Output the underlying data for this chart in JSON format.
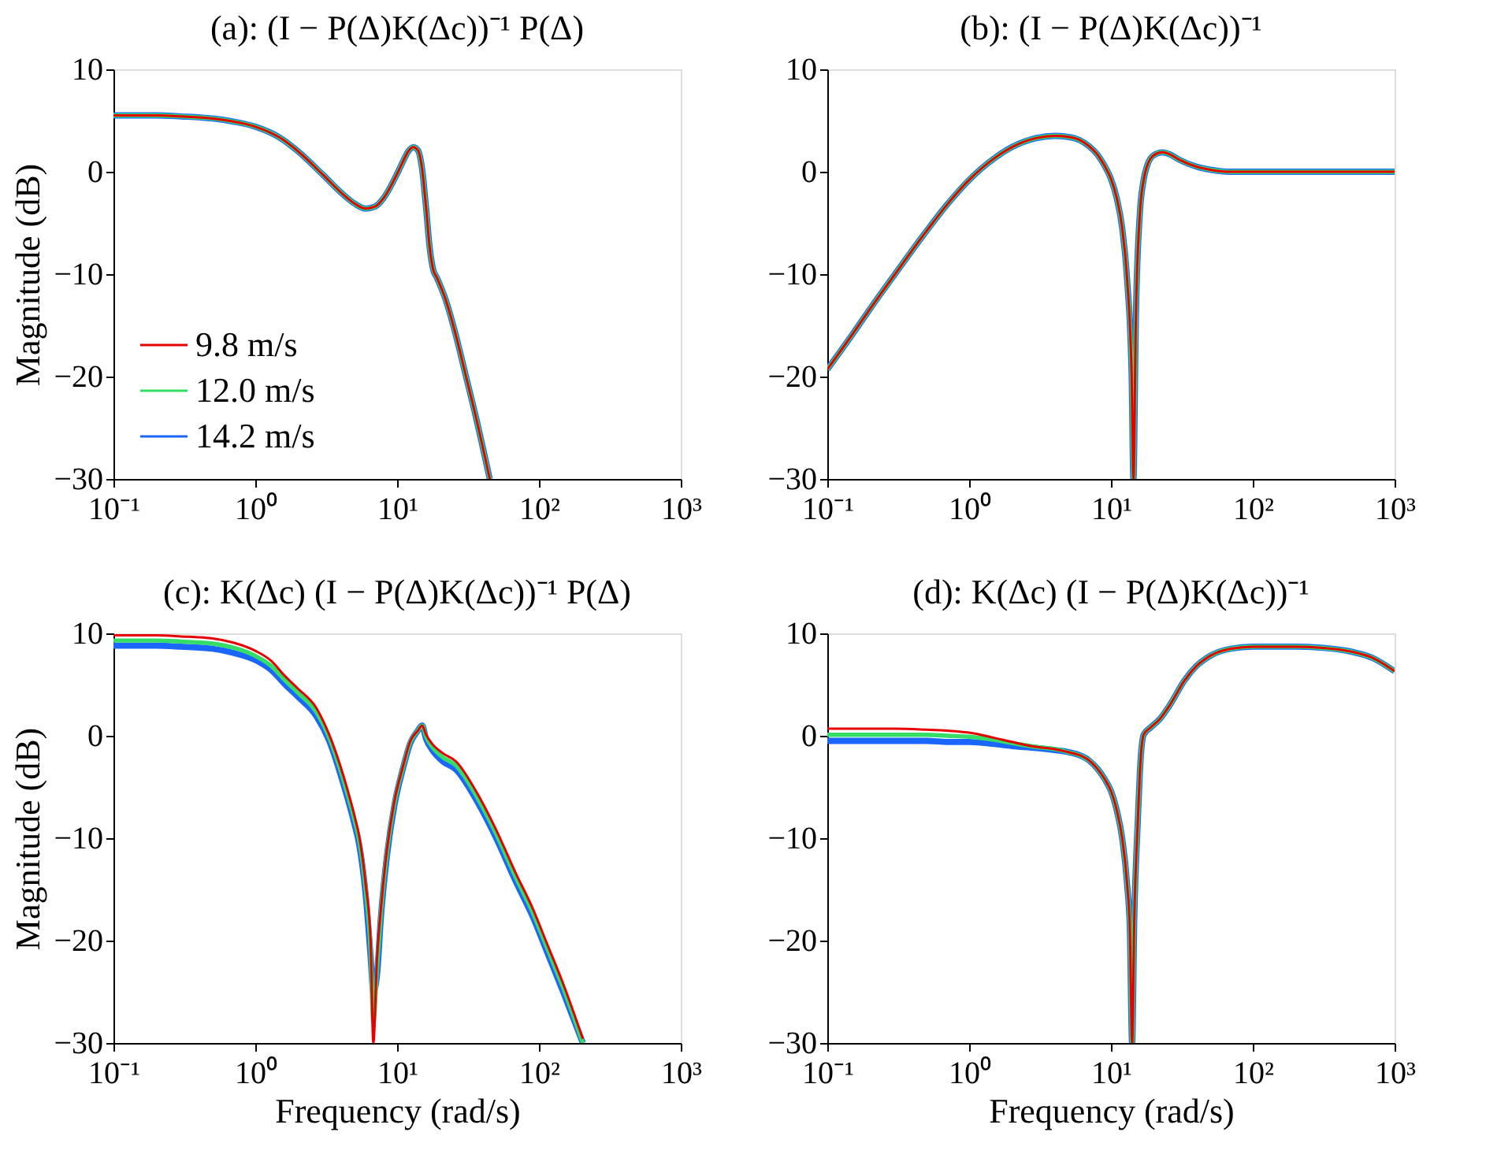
{
  "chart_data": [
    {
      "type": "line",
      "title": "(a): (I − P(Δ)K(Δc))⁻¹ P(Δ)",
      "ylabel": "Magnitude (dB)",
      "legend": "bottom left",
      "x": [
        0.1,
        0.2,
        0.3,
        0.5,
        0.7,
        1,
        1.5,
        2,
        3,
        4,
        5,
        6,
        7,
        8,
        10,
        11,
        12,
        13,
        14,
        15,
        16,
        17,
        18,
        19,
        22,
        26,
        30,
        36,
        45
      ],
      "series": [
        {
          "name": "9.8 m/s",
          "color": "#e60000",
          "values": [
            5.5,
            5.5,
            5.4,
            5.2,
            4.9,
            4.4,
            3.3,
            2.0,
            -0.3,
            -2.0,
            -3.1,
            -3.6,
            -3.4,
            -2.6,
            -0.2,
            1.0,
            2.0,
            2.4,
            2.1,
            0.3,
            -3.5,
            -7.5,
            -9.6,
            -10.3,
            -12.5,
            -16,
            -19.5,
            -24,
            -30
          ]
        },
        {
          "name": "12.0 m/s",
          "color": "#33dd66",
          "values": [
            5.5,
            5.5,
            5.4,
            5.2,
            4.9,
            4.4,
            3.3,
            2.0,
            -0.3,
            -2.0,
            -3.1,
            -3.6,
            -3.4,
            -2.6,
            -0.2,
            1.0,
            2.0,
            2.4,
            2.1,
            0.3,
            -3.5,
            -7.5,
            -9.6,
            -10.3,
            -12.5,
            -16,
            -19.5,
            -24,
            -30
          ]
        },
        {
          "name": "14.2 m/s",
          "color": "#1a66ff",
          "values": [
            5.5,
            5.5,
            5.4,
            5.2,
            4.9,
            4.4,
            3.3,
            2.0,
            -0.3,
            -2.0,
            -3.1,
            -3.6,
            -3.4,
            -2.6,
            -0.2,
            1.0,
            2.0,
            2.4,
            2.1,
            0.3,
            -3.5,
            -7.5,
            -9.6,
            -10.3,
            -12.5,
            -16,
            -19.5,
            -24,
            -30
          ]
        }
      ],
      "xlim": [
        0.1,
        1000
      ],
      "ylim": [
        -30,
        10
      ],
      "log": "x",
      "xticks": [
        {
          "value": 0.1,
          "label": "10⁻¹"
        },
        {
          "value": 1,
          "label": "10⁰"
        },
        {
          "value": 10,
          "label": "10¹"
        },
        {
          "value": 100,
          "label": "10²"
        },
        {
          "value": 1000,
          "label": "10³"
        }
      ],
      "yticks": [
        -30,
        -20,
        -10,
        0,
        10
      ]
    },
    {
      "type": "line",
      "title": "(b): (I − P(Δ)K(Δc))⁻¹",
      "x": [
        0.1,
        0.15,
        0.2,
        0.3,
        0.5,
        0.7,
        1,
        1.5,
        2,
        3,
        4,
        5,
        6,
        7,
        8,
        9,
        10,
        11,
        12,
        13,
        14,
        14.4,
        15,
        16,
        17,
        18,
        20,
        23,
        26,
        30,
        40,
        50,
        70,
        100,
        200,
        500,
        1000
      ],
      "series": [
        {
          "color": "#e60000",
          "values": [
            -19.3,
            -15.9,
            -13.4,
            -10.0,
            -5.8,
            -3.2,
            -0.8,
            1.3,
            2.4,
            3.3,
            3.5,
            3.4,
            3.1,
            2.5,
            1.7,
            0.6,
            -0.7,
            -2.6,
            -5.5,
            -10.5,
            -20,
            -30,
            -14,
            -4,
            -0.8,
            0.6,
            1.6,
            1.9,
            1.7,
            1.2,
            0.5,
            0.2,
            0,
            0,
            0,
            0,
            0
          ]
        },
        {
          "color": "#33dd66",
          "values": [
            -19.3,
            -15.9,
            -13.4,
            -10.0,
            -5.8,
            -3.2,
            -0.8,
            1.3,
            2.4,
            3.3,
            3.5,
            3.4,
            3.1,
            2.5,
            1.7,
            0.6,
            -0.7,
            -2.6,
            -5.5,
            -10.5,
            -20,
            -30,
            -14,
            -4,
            -0.8,
            0.6,
            1.6,
            1.9,
            1.7,
            1.2,
            0.5,
            0.2,
            0,
            0,
            0,
            0,
            0
          ]
        },
        {
          "color": "#1a66ff",
          "values": [
            -19.3,
            -15.9,
            -13.4,
            -10.0,
            -5.8,
            -3.2,
            -0.8,
            1.3,
            2.4,
            3.3,
            3.5,
            3.4,
            3.1,
            2.5,
            1.7,
            0.6,
            -0.7,
            -2.6,
            -5.5,
            -10.5,
            -20,
            -30,
            -14,
            -4,
            -0.8,
            0.6,
            1.6,
            1.9,
            1.7,
            1.2,
            0.5,
            0.2,
            0,
            0,
            0,
            0,
            0
          ]
        }
      ],
      "xlim": [
        0.1,
        1000
      ],
      "ylim": [
        -30,
        10
      ],
      "log": "x",
      "xticks": [
        {
          "value": 0.1,
          "label": "10⁻¹"
        },
        {
          "value": 1,
          "label": "10⁰"
        },
        {
          "value": 10,
          "label": "10¹"
        },
        {
          "value": 100,
          "label": "10²"
        },
        {
          "value": 1000,
          "label": "10³"
        }
      ],
      "yticks": [
        -30,
        -20,
        -10,
        0,
        10
      ]
    },
    {
      "type": "line",
      "title": "(c): K(Δc) (I − P(Δ)K(Δc))⁻¹ P(Δ)",
      "ylabel": "Magnitude (dB)",
      "xlabel": "Frequency (rad/s)",
      "x": [
        0.1,
        0.2,
        0.3,
        0.5,
        0.7,
        1,
        1.3,
        1.6,
        2,
        2.7,
        3.3,
        4.2,
        5,
        5.4,
        6,
        6.5,
        6.8,
        7.2,
        7.7,
        8.5,
        9.6,
        11,
        12.4,
        14,
        15,
        16,
        17.7,
        21,
        26,
        37,
        50,
        68,
        90,
        114,
        150,
        204
      ],
      "series": [
        {
          "color": "#e60000",
          "values": [
            9.8,
            9.8,
            9.7,
            9.5,
            9.1,
            8.3,
            7.3,
            5.9,
            4.6,
            2.7,
            0.2,
            -4,
            -7.8,
            -9.8,
            -14.5,
            -20,
            -30,
            -22,
            -16.8,
            -11,
            -6.3,
            -3.0,
            -0.5,
            0.5,
            1.0,
            0.1,
            -0.8,
            -1.7,
            -2.5,
            -5.7,
            -9.2,
            -13.3,
            -16.8,
            -20.3,
            -24.4,
            -29.6
          ]
        },
        {
          "color": "#33dd66",
          "values": [
            9.3,
            9.3,
            9.2,
            9.0,
            8.6,
            7.8,
            6.8,
            5.5,
            4.2,
            2.3,
            -0.1,
            -4.4,
            -8.2,
            -10.2,
            -15,
            -21,
            -28,
            -23,
            -17.2,
            -11.3,
            -6.5,
            -3.1,
            -0.6,
            0.5,
            1.0,
            -0.1,
            -1.1,
            -2.1,
            -2.9,
            -6.1,
            -9.6,
            -13.7,
            -17.2,
            -20.7,
            -24.8,
            -30
          ]
        },
        {
          "color": "#1a66ff",
          "values": [
            8.8,
            8.8,
            8.7,
            8.5,
            8.1,
            7.4,
            6.4,
            5.1,
            3.8,
            1.9,
            -0.4,
            -4.8,
            -8.6,
            -10.6,
            -15.5,
            -21.5,
            -25,
            -23.5,
            -17.6,
            -11.6,
            -6.7,
            -3.2,
            -0.7,
            0.5,
            1.0,
            -0.3,
            -1.4,
            -2.5,
            -3.3,
            -6.5,
            -10,
            -14.1,
            -17.6,
            -21.1,
            -25.2,
            -30
          ]
        }
      ],
      "xlim": [
        0.1,
        1000
      ],
      "ylim": [
        -30,
        10
      ],
      "log": "x",
      "xticks": [
        {
          "value": 0.1,
          "label": "10⁻¹"
        },
        {
          "value": 1,
          "label": "10⁰"
        },
        {
          "value": 10,
          "label": "10¹"
        },
        {
          "value": 100,
          "label": "10²"
        },
        {
          "value": 1000,
          "label": "10³"
        }
      ],
      "yticks": [
        -30,
        -20,
        -10,
        0,
        10
      ]
    },
    {
      "type": "line",
      "title": "(d): K(Δc) (I − P(Δ)K(Δc))⁻¹",
      "xlabel": "Frequency (rad/s)",
      "x": [
        0.1,
        0.2,
        0.3,
        0.5,
        0.7,
        1,
        1.5,
        2,
        3,
        4,
        5,
        6,
        7,
        8,
        9,
        10,
        11,
        12,
        13,
        13.6,
        14.1,
        14.6,
        15.5,
        16,
        17,
        19,
        22,
        26,
        33,
        40,
        50,
        70,
        100,
        150,
        200,
        300,
        500,
        700,
        1000
      ],
      "series": [
        {
          "color": "#e60000",
          "values": [
            0.7,
            0.7,
            0.7,
            0.6,
            0.5,
            0.3,
            -0.2,
            -0.6,
            -1.1,
            -1.3,
            -1.6,
            -1.9,
            -2.4,
            -3.2,
            -4.2,
            -5.4,
            -7.3,
            -10,
            -14.5,
            -19,
            -30,
            -18,
            -8,
            -3.5,
            0.1,
            0.8,
            1.6,
            3,
            5.4,
            6.8,
            7.8,
            8.5,
            8.7,
            8.7,
            8.7,
            8.6,
            8.2,
            7.6,
            6.3
          ]
        },
        {
          "color": "#33dd66",
          "values": [
            0.1,
            0.1,
            0.1,
            0.1,
            0.0,
            -0.1,
            -0.4,
            -0.7,
            -1.1,
            -1.3,
            -1.6,
            -1.9,
            -2.4,
            -3.2,
            -4.2,
            -5.4,
            -7.3,
            -10,
            -14.5,
            -19,
            -30,
            -18,
            -8,
            -3.5,
            0.1,
            0.8,
            1.6,
            3,
            5.4,
            6.8,
            7.8,
            8.5,
            8.7,
            8.7,
            8.7,
            8.6,
            8.2,
            7.6,
            6.3
          ]
        },
        {
          "color": "#1a66ff",
          "values": [
            -0.5,
            -0.5,
            -0.5,
            -0.5,
            -0.6,
            -0.6,
            -0.8,
            -1.0,
            -1.2,
            -1.4,
            -1.6,
            -1.9,
            -2.4,
            -3.2,
            -4.2,
            -5.4,
            -7.3,
            -10,
            -14.5,
            -19,
            -30,
            -18,
            -8,
            -3.5,
            0.1,
            0.8,
            1.6,
            3,
            5.4,
            6.8,
            7.8,
            8.5,
            8.7,
            8.7,
            8.7,
            8.6,
            8.2,
            7.6,
            6.3
          ]
        }
      ],
      "xlim": [
        0.1,
        1000
      ],
      "ylim": [
        -30,
        10
      ],
      "log": "x",
      "xticks": [
        {
          "value": 0.1,
          "label": "10⁻¹"
        },
        {
          "value": 1,
          "label": "10⁰"
        },
        {
          "value": 10,
          "label": "10¹"
        },
        {
          "value": 100,
          "label": "10²"
        },
        {
          "value": 1000,
          "label": "10³"
        }
      ],
      "yticks": [
        -30,
        -20,
        -10,
        0,
        10
      ]
    }
  ]
}
